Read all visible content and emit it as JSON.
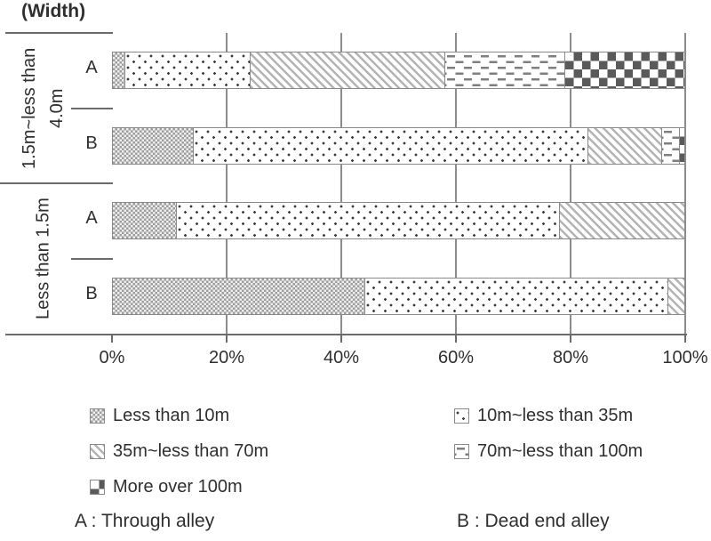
{
  "chart_data": {
    "type": "bar",
    "orientation": "horizontal",
    "stacked": true,
    "title": "(Width)",
    "xlabel": "",
    "ylabel": "(Width)",
    "unit": "%",
    "xlim": [
      0,
      100
    ],
    "x_ticks": [
      "0%",
      "20%",
      "40%",
      "60%",
      "80%",
      "100%"
    ],
    "x_tick_values": [
      0,
      20,
      40,
      60,
      80,
      100
    ],
    "grid": "vertical",
    "legend_position": "bottom",
    "series": [
      {
        "name": "Less than 10m",
        "pattern": "fine-checker"
      },
      {
        "name": "10m~less than 35m",
        "pattern": "dots"
      },
      {
        "name": "35m~less than 70m",
        "pattern": "diagonal-stripes"
      },
      {
        "name": "70m~less than 100m",
        "pattern": "dashes"
      },
      {
        "name": "More over 100m",
        "pattern": "checkerboard"
      }
    ],
    "groups": [
      {
        "label": "1.5m~less than 4.0m",
        "bars": [
          {
            "label": "A",
            "values": [
              2,
              22,
              34,
              21,
              21
            ]
          },
          {
            "label": "B",
            "values": [
              14,
              69,
              13,
              3,
              1
            ]
          }
        ]
      },
      {
        "label": "Less than 1.5m",
        "bars": [
          {
            "label": "A",
            "values": [
              11,
              67,
              22,
              0,
              0
            ]
          },
          {
            "label": "B",
            "values": [
              44,
              53,
              3,
              0,
              0
            ]
          }
        ]
      }
    ],
    "notes": [
      {
        "key": "A",
        "label": "A : Through alley"
      },
      {
        "key": "B",
        "label": "B : Dead end alley"
      }
    ],
    "colors": {
      "axis_line": "#6b6b6b",
      "grid_line": "#8c8c8c",
      "bar_border": "#8a8a8a",
      "pattern_light_gray": "#b3b3b3",
      "pattern_mid_gray": "#9d9d9d",
      "pattern_dark_gray": "#5a5a5a",
      "dot_color": "#3a3a3a",
      "text": "#2f2f2f"
    }
  }
}
